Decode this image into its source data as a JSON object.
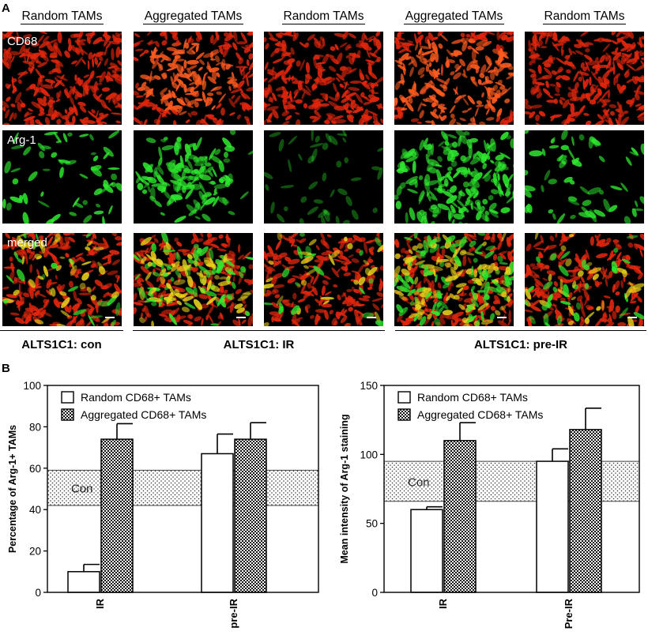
{
  "panel_a": {
    "letter": "A",
    "columns": [
      {
        "header": "Random TAMs",
        "pattern": "random"
      },
      {
        "header": "Aggregated TAMs",
        "pattern": "aggregated"
      },
      {
        "header": "Random TAMs",
        "pattern": "random-sparse"
      },
      {
        "header": "Aggregated TAMs",
        "pattern": "aggregated-strong"
      },
      {
        "header": "Random TAMs",
        "pattern": "random"
      }
    ],
    "rows": [
      {
        "label": "CD68",
        "channel": "red"
      },
      {
        "label": "Arg-1",
        "channel": "green"
      },
      {
        "label": "merged",
        "channel": "merged"
      }
    ],
    "groups": [
      {
        "label": "ALTS1C1: con"
      },
      {
        "label": "ALTS1C1: IR"
      },
      {
        "label": "ALTS1C1: pre-IR"
      }
    ],
    "colors": {
      "red": "#e0260d",
      "green": "#2ee82e",
      "yellow": "#e8d21a"
    }
  },
  "panel_b": {
    "letter": "B",
    "legend": {
      "random": "Random CD68+ TAMs",
      "aggregated": "Aggregated CD68+ TAMs"
    },
    "band_label": "Con"
  },
  "chart_data": [
    {
      "type": "bar",
      "categories": [
        "IR",
        "pre-IR"
      ],
      "series": [
        {
          "name": "Random CD68+ TAMs",
          "values": [
            10,
            67
          ],
          "errors": [
            3.5,
            9.5
          ]
        },
        {
          "name": "Aggregated CD68+ TAMs",
          "values": [
            74,
            74
          ],
          "errors": [
            7.5,
            8
          ]
        }
      ],
      "ylabel": "Percentage of Arg-1+ TAMs",
      "ylim": [
        0,
        100
      ],
      "yticks": [
        0,
        20,
        40,
        60,
        80,
        100
      ],
      "control_band": [
        42,
        59
      ],
      "legend_position": "top-left"
    },
    {
      "type": "bar",
      "categories": [
        "IR",
        "Pre-IR"
      ],
      "series": [
        {
          "name": "Random CD68+ TAMs",
          "values": [
            60,
            95
          ],
          "errors": [
            2,
            9
          ]
        },
        {
          "name": "Aggregated CD68+ TAMs",
          "values": [
            110,
            118
          ],
          "errors": [
            13,
            15.5
          ]
        }
      ],
      "ylabel": "Mean intensity of Arg-1 staining",
      "ylim": [
        0,
        150
      ],
      "yticks": [
        0,
        50,
        100,
        150
      ],
      "control_band": [
        66,
        95
      ],
      "legend_position": "top-left"
    }
  ]
}
